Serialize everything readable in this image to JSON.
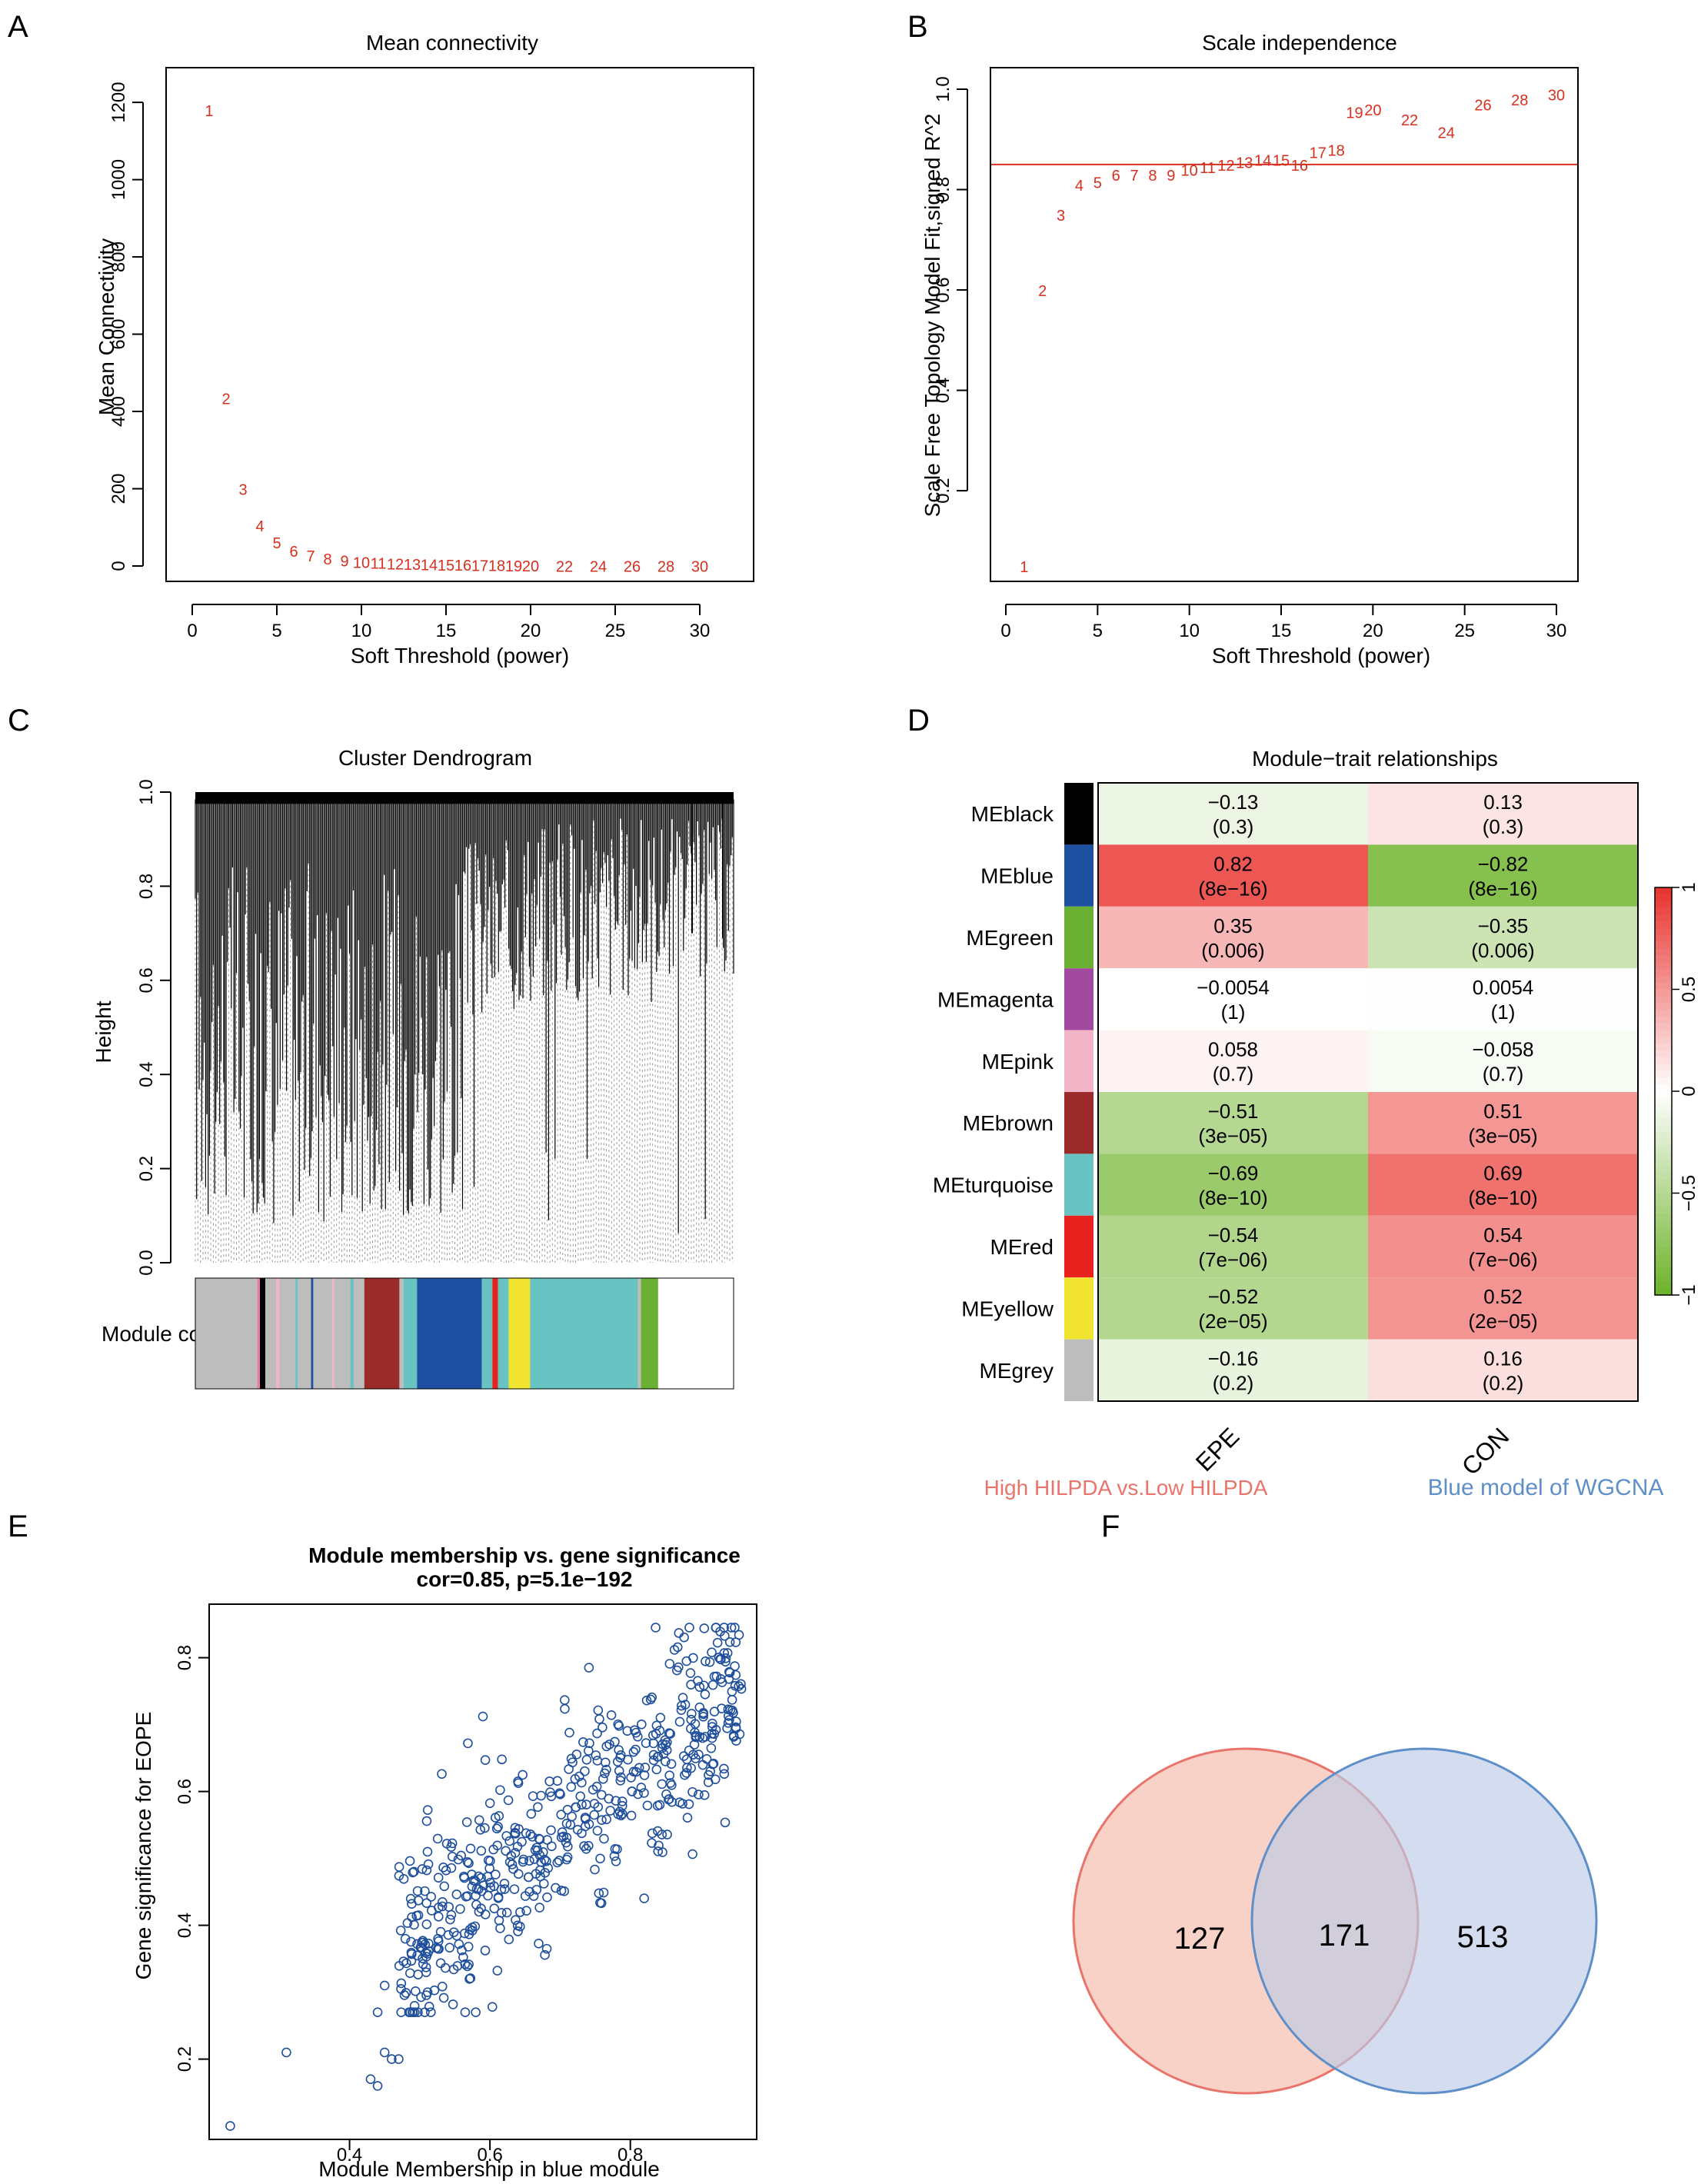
{
  "panel_letters": [
    "A",
    "B",
    "C",
    "D",
    "E",
    "F"
  ],
  "colors": {
    "red_label": "#d7301f",
    "axis": "#000000",
    "blue_point": "#1f4f9c",
    "venn_left_fill": "#f7c9bd",
    "venn_left_stroke": "#e8746b",
    "venn_right_fill": "#c5d2ea",
    "venn_right_stroke": "#5f8fc8",
    "venn_left_text": "#e8746b",
    "venn_right_text": "#5f8fc8"
  },
  "chart_data": [
    {
      "id": "A",
      "type": "scatter",
      "title": "Mean connectivity",
      "xlabel": "Soft Threshold (power)",
      "ylabel": "Mean Connectivity",
      "xlim": [
        0,
        30
      ],
      "ylim": [
        0,
        1250
      ],
      "xticks": [
        0,
        5,
        10,
        15,
        20,
        25,
        30
      ],
      "yticks": [
        0,
        200,
        400,
        600,
        800,
        1000,
        1200
      ],
      "x": [
        1,
        2,
        3,
        4,
        5,
        6,
        7,
        8,
        9,
        10,
        11,
        12,
        13,
        14,
        15,
        16,
        17,
        18,
        19,
        20,
        22,
        24,
        26,
        28,
        30
      ],
      "y": [
        1180,
        435,
        200,
        105,
        62,
        40,
        28,
        20,
        15,
        11,
        9,
        7,
        6,
        5,
        4,
        3.5,
        3,
        2.5,
        2,
        1.8,
        1.4,
        1.1,
        0.9,
        0.7,
        0.6
      ],
      "labels": [
        "1",
        "2",
        "3",
        "4",
        "5",
        "6",
        "7",
        "8",
        "9",
        "10",
        "11",
        "12",
        "13",
        "14",
        "15",
        "16",
        "17",
        "18",
        "19",
        "20",
        "22",
        "24",
        "26",
        "28",
        "30"
      ]
    },
    {
      "id": "B",
      "type": "scatter",
      "title": "Scale independence",
      "xlabel": "Soft Threshold (power)",
      "ylabel": "Scale Free Topology Model Fit,signed R^2",
      "xlim": [
        0,
        30
      ],
      "ylim": [
        0.0,
        1.05
      ],
      "xticks": [
        0,
        5,
        10,
        15,
        20,
        25,
        30
      ],
      "yticks": [
        0.2,
        0.4,
        0.6,
        0.8,
        1.0
      ],
      "ytick_labels": [
        "0.2",
        "0.4",
        "0.6",
        "0.8",
        "1.0"
      ],
      "hline": 0.85,
      "x": [
        1,
        2,
        3,
        4,
        5,
        6,
        7,
        8,
        9,
        10,
        11,
        12,
        13,
        14,
        15,
        16,
        17,
        18,
        19,
        20,
        22,
        24,
        26,
        28,
        30
      ],
      "y": [
        0.05,
        0.6,
        0.75,
        0.81,
        0.815,
        0.83,
        0.83,
        0.83,
        0.83,
        0.84,
        0.845,
        0.85,
        0.855,
        0.86,
        0.86,
        0.85,
        0.875,
        0.88,
        0.955,
        0.96,
        0.94,
        0.915,
        0.97,
        0.98,
        0.99
      ],
      "labels": [
        "1",
        "2",
        "3",
        "4",
        "5",
        "6",
        "7",
        "8",
        "9",
        "10",
        "11",
        "12",
        "13",
        "14",
        "15",
        "16",
        "17",
        "18",
        "19",
        "20",
        "22",
        "24",
        "26",
        "28",
        "30"
      ]
    },
    {
      "id": "C",
      "type": "dendrogram",
      "title": "Cluster Dendrogram",
      "ylabel": "Height",
      "ylim": [
        0.0,
        1.0
      ],
      "yticks": [
        0.0,
        0.2,
        0.4,
        0.6,
        0.8,
        1.0
      ],
      "ytick_labels": [
        "0.0",
        "0.2",
        "0.4",
        "0.6",
        "0.8",
        "1.0"
      ],
      "module_colors_label": "Module colors",
      "module_segments": [
        {
          "color": "#bdbdbd",
          "frac": 0.115
        },
        {
          "color": "#e67fb0",
          "frac": 0.005
        },
        {
          "color": "#000000",
          "frac": 0.01
        },
        {
          "color": "#bdbdbd",
          "frac": 0.02
        },
        {
          "color": "#f2b5c8",
          "frac": 0.006
        },
        {
          "color": "#bdbdbd",
          "frac": 0.03
        },
        {
          "color": "#6ac3c3",
          "frac": 0.004
        },
        {
          "color": "#bdbdbd",
          "frac": 0.025
        },
        {
          "color": "#1f4fa0",
          "frac": 0.004
        },
        {
          "color": "#bdbdbd",
          "frac": 0.035
        },
        {
          "color": "#f2b5c8",
          "frac": 0.004
        },
        {
          "color": "#bdbdbd",
          "frac": 0.03
        },
        {
          "color": "#6ac3c3",
          "frac": 0.006
        },
        {
          "color": "#bdbdbd",
          "frac": 0.02
        },
        {
          "color": "#9b2a2a",
          "frac": 0.065
        },
        {
          "color": "#bdbdbd",
          "frac": 0.008
        },
        {
          "color": "#6ac3c3",
          "frac": 0.025
        },
        {
          "color": "#1f4fa0",
          "frac": 0.12
        },
        {
          "color": "#6ac3c3",
          "frac": 0.02
        },
        {
          "color": "#e8231f",
          "frac": 0.01
        },
        {
          "color": "#6ac3c3",
          "frac": 0.02
        },
        {
          "color": "#f0e431",
          "frac": 0.04
        },
        {
          "color": "#6ac3c3",
          "frac": 0.2
        },
        {
          "color": "#bdbdbd",
          "frac": 0.006
        },
        {
          "color": "#6ab033",
          "frac": 0.031
        }
      ]
    },
    {
      "id": "D",
      "type": "heatmap",
      "title": "Module−trait relationships",
      "columns": [
        "EPE",
        "CON"
      ],
      "rows": [
        {
          "name": "MEblack",
          "color": "#000000",
          "values": [
            "−0.13",
            "0.13"
          ],
          "p": [
            "(0.3)",
            "(0.3)"
          ],
          "r": [
            -0.13,
            0.13
          ]
        },
        {
          "name": "MEblue",
          "color": "#1f4fa0",
          "values": [
            "0.82",
            "−0.82"
          ],
          "p": [
            "(8e−16)",
            "(8e−16)"
          ],
          "r": [
            0.82,
            -0.82
          ]
        },
        {
          "name": "MEgreen",
          "color": "#6ab033",
          "values": [
            "0.35",
            "−0.35"
          ],
          "p": [
            "(0.006)",
            "(0.006)"
          ],
          "r": [
            0.35,
            -0.35
          ]
        },
        {
          "name": "MEmagenta",
          "color": "#a14a9e",
          "values": [
            "−0.0054",
            "0.0054"
          ],
          "p": [
            "(1)",
            "(1)"
          ],
          "r": [
            -0.0054,
            0.0054
          ]
        },
        {
          "name": "MEpink",
          "color": "#f2b5c8",
          "values": [
            "0.058",
            "−0.058"
          ],
          "p": [
            "(0.7)",
            "(0.7)"
          ],
          "r": [
            0.058,
            -0.058
          ]
        },
        {
          "name": "MEbrown",
          "color": "#9b2a2a",
          "values": [
            "−0.51",
            "0.51"
          ],
          "p": [
            "(3e−05)",
            "(3e−05)"
          ],
          "r": [
            -0.51,
            0.51
          ]
        },
        {
          "name": "MEturquoise",
          "color": "#6ac3c3",
          "values": [
            "−0.69",
            "0.69"
          ],
          "p": [
            "(8e−10)",
            "(8e−10)"
          ],
          "r": [
            -0.69,
            0.69
          ]
        },
        {
          "name": "MEred",
          "color": "#e8231f",
          "values": [
            "−0.54",
            "0.54"
          ],
          "p": [
            "(7e−06)",
            "(7e−06)"
          ],
          "r": [
            -0.54,
            0.54
          ]
        },
        {
          "name": "MEyellow",
          "color": "#f0e431",
          "values": [
            "−0.52",
            "0.52"
          ],
          "p": [
            "(2e−05)",
            "(2e−05)"
          ],
          "r": [
            -0.52,
            0.52
          ]
        },
        {
          "name": "MEgrey",
          "color": "#bdbdbd",
          "values": [
            "−0.16",
            "0.16"
          ],
          "p": [
            "(0.2)",
            "(0.2)"
          ],
          "r": [
            -0.16,
            0.16
          ]
        }
      ],
      "colorbar_ticks": [
        "1",
        "0.5",
        "0",
        "−0.5",
        "−1"
      ]
    },
    {
      "id": "E",
      "type": "scatter",
      "title": "Module membership vs. gene significance",
      "subtitle": "cor=0.85, p=5.1e−192",
      "xlabel": "Module Membership in blue module",
      "ylabel": "Gene significance for EOPE",
      "xlim": [
        0.2,
        0.98
      ],
      "ylim": [
        0.08,
        0.88
      ],
      "xticks": [
        0.4,
        0.6,
        0.8
      ],
      "xtick_labels": [
        "0.4",
        "0.6",
        "0.8"
      ],
      "yticks": [
        0.2,
        0.4,
        0.6,
        0.8
      ],
      "ytick_labels": [
        "0.2",
        "0.4",
        "0.6",
        "0.8"
      ],
      "n_points": 560,
      "slope": 0.85,
      "intercept": -0.055,
      "noise_sd": 0.075,
      "extra_points": [
        [
          0.23,
          0.1
        ],
        [
          0.31,
          0.21
        ],
        [
          0.43,
          0.17
        ],
        [
          0.44,
          0.16
        ],
        [
          0.45,
          0.21
        ],
        [
          0.46,
          0.2
        ],
        [
          0.47,
          0.2
        ],
        [
          0.44,
          0.27
        ],
        [
          0.45,
          0.31
        ]
      ]
    },
    {
      "id": "F",
      "type": "venn",
      "left_label": "High HILPDA vs.Low HILPDA",
      "right_label": "Blue model of WGCNA",
      "left_only": "127",
      "both": "171",
      "right_only": "513"
    }
  ]
}
